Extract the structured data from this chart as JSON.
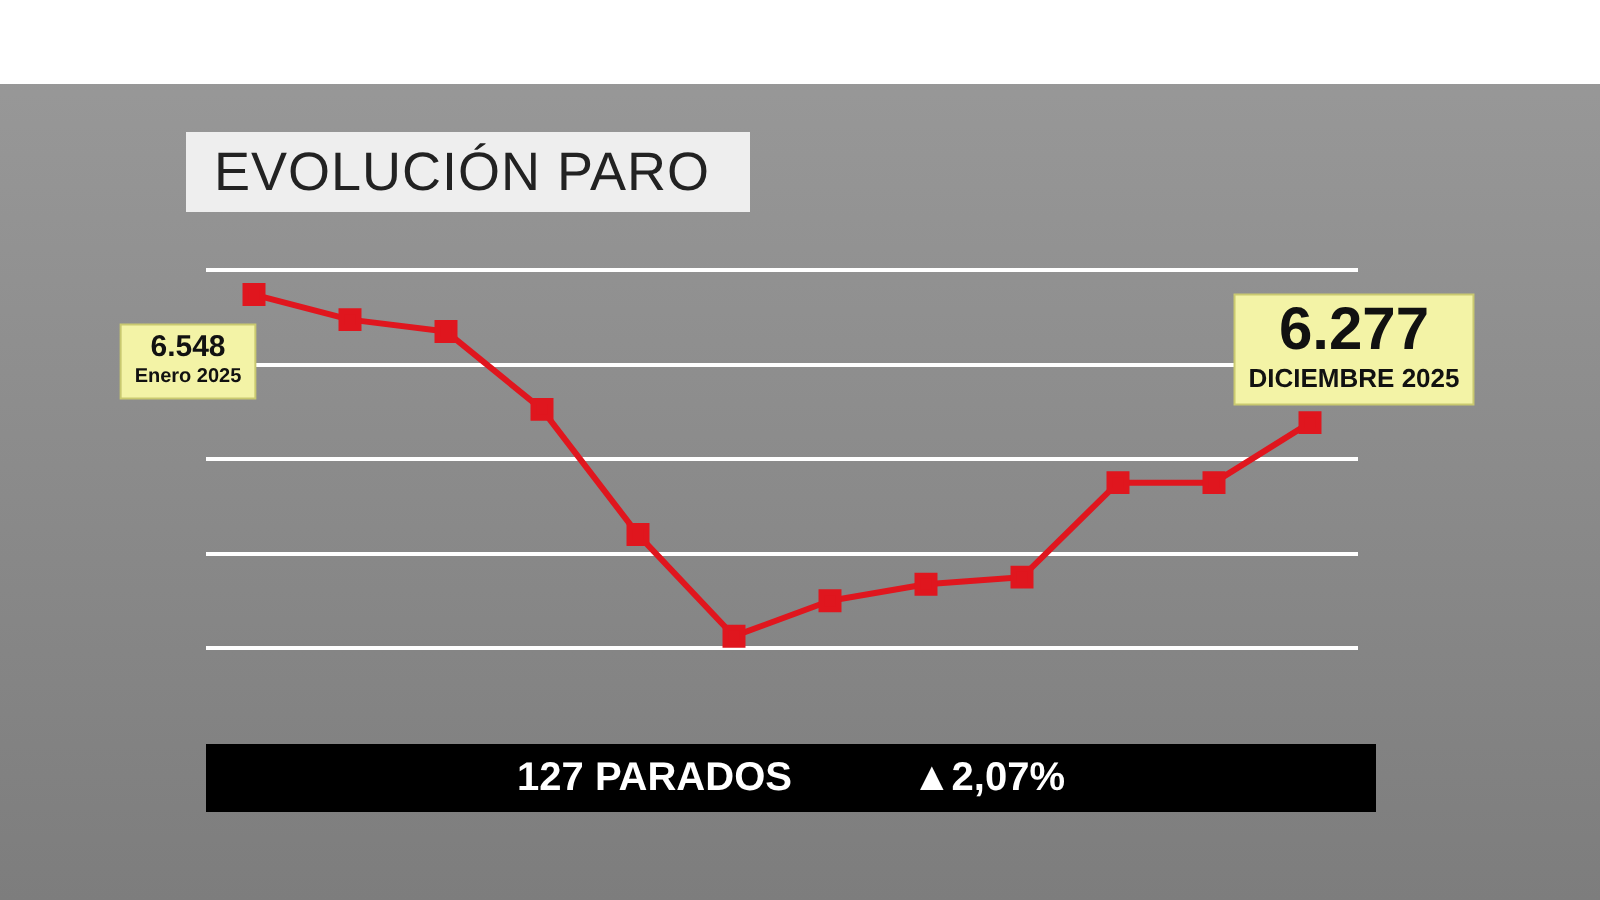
{
  "chart_data": {
    "type": "line",
    "title": "EVOLUCIÓN PARO",
    "categories": [
      null,
      null,
      null,
      null,
      null,
      null,
      null,
      null,
      null,
      null,
      null,
      null
    ],
    "series": [
      {
        "color": "#e0161e",
        "values": [
          6548,
          6495,
          6470,
          6305,
          6040,
          5825,
          5900,
          5935,
          5950,
          6150,
          6150,
          6277
        ],
        "value_labels": [
          "6.548",
          null,
          null,
          null,
          null,
          null,
          null,
          null,
          null,
          null,
          null,
          "6.277"
        ]
      }
    ],
    "annotations": [
      "Enero 2025",
      "DICIEMBRE 2025",
      "127 PARADOS",
      "▲2,07%"
    ],
    "ylim": [
      5800,
      6600
    ],
    "yticks": [
      {
        "value": 5800,
        "label": null
      },
      {
        "value": 6000,
        "label": null
      },
      {
        "value": 6200,
        "label": null
      },
      {
        "value": 6400,
        "label": null
      },
      {
        "value": 6600,
        "label": null
      }
    ],
    "grid": "y",
    "tick_labels": false,
    "legend": false,
    "marker": "square",
    "line_style": "solid"
  }
}
